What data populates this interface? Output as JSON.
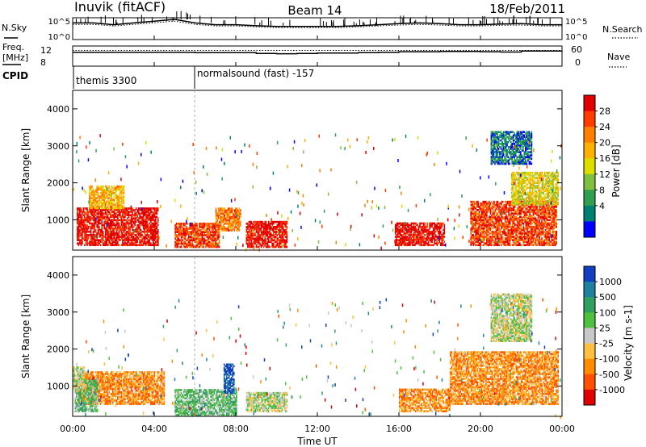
{
  "header": {
    "station": "Inuvik (fitACF)",
    "beam": "Beam 14",
    "date": "18/Feb/2011"
  },
  "noise_panel": {
    "left_label": "N.Sky",
    "right_label": "N.Search",
    "left_ticks": [
      "10^5",
      "10^0"
    ],
    "right_ticks": [
      "10^5",
      "10^0"
    ]
  },
  "freq_panel": {
    "left_label_line1": "Freq.",
    "left_label_line2": "[MHz]",
    "right_label": "Nave",
    "left_ticks": [
      "12",
      "8"
    ],
    "right_ticks": [
      "60",
      "0"
    ]
  },
  "cpid_panel": {
    "label": "CPID",
    "segments": [
      {
        "start_hour": 0,
        "end_hour": 5.97,
        "name": "themis 3300"
      },
      {
        "start_hour": 5.97,
        "end_hour": 24,
        "name": "normalsound (fast) -157"
      }
    ]
  },
  "time_axis": {
    "label": "Time UT",
    "ticks": [
      "00:00",
      "04:00",
      "08:00",
      "12:00",
      "16:00",
      "20:00",
      "00:00"
    ]
  },
  "range_axis": {
    "label": "Slant Range [km]",
    "ticks": [
      "1000",
      "2000",
      "3000",
      "4000"
    ],
    "range_km": [
      180,
      4500
    ]
  },
  "power_scale": {
    "label": "Power [dB]",
    "ticks": [
      "28",
      "24",
      "20",
      "16",
      "12",
      "8",
      "4"
    ],
    "colors": [
      "#e00000",
      "#ff3c00",
      "#ff7f00",
      "#ffb000",
      "#dddd00",
      "#80c040",
      "#30a050",
      "#008070",
      "#0000ff"
    ]
  },
  "velocity_scale": {
    "label": "Velocity [m s-1]",
    "ticks": [
      "1000",
      "500",
      "100",
      "25",
      "-25",
      "-100",
      "-500",
      "-1000"
    ],
    "colors": [
      "#1040c0",
      "#2080a0",
      "#30a060",
      "#50c040",
      "#c8c8c8",
      "#ffc040",
      "#ff8c00",
      "#ff5000",
      "#e00000"
    ]
  },
  "chart_data": {
    "type": "heatmap",
    "x_unit": "hours UT",
    "y_unit": "slant range km",
    "xlim": [
      0,
      24
    ],
    "ylim": [
      180,
      4500
    ],
    "power_regions": [
      {
        "t0": 0.2,
        "t1": 4.2,
        "r0": 300,
        "r1": 1300,
        "level": 0
      },
      {
        "t0": 0.8,
        "t1": 2.5,
        "r0": 1300,
        "r1": 1900,
        "level": 3
      },
      {
        "t0": 5.0,
        "t1": 7.2,
        "r0": 250,
        "r1": 900,
        "level": 1
      },
      {
        "t0": 7.0,
        "t1": 8.2,
        "r0": 700,
        "r1": 1300,
        "level": 2
      },
      {
        "t0": 8.5,
        "t1": 10.5,
        "r0": 250,
        "r1": 950,
        "level": 0
      },
      {
        "t0": 15.8,
        "t1": 18.2,
        "r0": 300,
        "r1": 900,
        "level": 0
      },
      {
        "t0": 19.5,
        "t1": 23.7,
        "r0": 300,
        "r1": 1500,
        "level": 1
      },
      {
        "t0": 21.5,
        "t1": 23.8,
        "r0": 1400,
        "r1": 2300,
        "level": 4
      },
      {
        "t0": 20.5,
        "t1": 22.5,
        "r0": 2500,
        "r1": 3400,
        "level": 7
      }
    ],
    "velocity_regions": [
      {
        "t0": 0.2,
        "t1": 4.5,
        "r0": 500,
        "r1": 1400,
        "level": 6
      },
      {
        "t0": 0.1,
        "t1": 1.2,
        "r0": 300,
        "r1": 1200,
        "level": 3
      },
      {
        "t0": 0.0,
        "t1": 0.6,
        "r0": 900,
        "r1": 1500,
        "level": 4
      },
      {
        "t0": 5.0,
        "t1": 8.0,
        "r0": 200,
        "r1": 900,
        "level": 3
      },
      {
        "t0": 7.4,
        "t1": 7.9,
        "r0": 800,
        "r1": 1600,
        "level": 0
      },
      {
        "t0": 8.5,
        "t1": 10.5,
        "r0": 300,
        "r1": 800,
        "level": 4
      },
      {
        "t0": 16.0,
        "t1": 18.5,
        "r0": 300,
        "r1": 900,
        "level": 6
      },
      {
        "t0": 18.5,
        "t1": 23.8,
        "r0": 500,
        "r1": 1900,
        "level": 6
      },
      {
        "t0": 20.5,
        "t1": 22.5,
        "r0": 2200,
        "r1": 3500,
        "level": 4
      }
    ],
    "noise_sky": [
      4,
      4,
      3.5,
      4,
      4.5,
      5,
      4,
      3.5,
      3.5,
      3.2,
      3,
      3,
      3,
      3,
      3.2,
      3.5,
      3.8,
      4,
      3.8,
      3.5,
      3.5,
      3.7,
      3.8,
      3.5,
      3.5
    ],
    "frequency_mhz": [
      11.1,
      11.1,
      11.1,
      11.1,
      11.1,
      11.1,
      11.0,
      11.0,
      11.0,
      10.8,
      10.7,
      10.8,
      10.9,
      10.9,
      11.0,
      11.1,
      11.3,
      11.3,
      11.4,
      11.4,
      11.3,
      11.2,
      11.5,
      11.5,
      11.6
    ]
  }
}
